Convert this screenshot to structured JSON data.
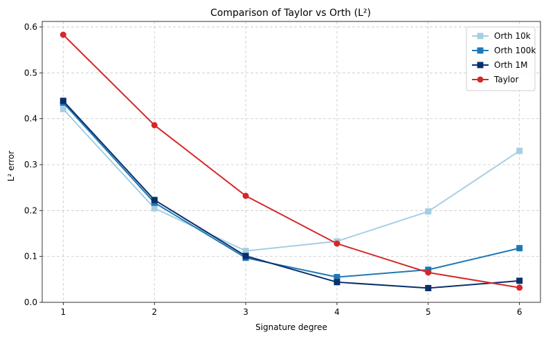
{
  "chart_data": {
    "type": "line",
    "title": "Comparison of Taylor vs Orth (L²)",
    "xlabel": "Signature degree",
    "ylabel": "L² error",
    "x": [
      1,
      2,
      3,
      4,
      5,
      6
    ],
    "xticks": [
      "1",
      "2",
      "3",
      "4",
      "5",
      "6"
    ],
    "yticks": [
      "0.0",
      "0.1",
      "0.2",
      "0.3",
      "0.4",
      "0.5",
      "0.6"
    ],
    "xlim": [
      0.77,
      6.23
    ],
    "ylim": [
      0,
      0.612
    ],
    "grid": true,
    "legend_position": "top-right",
    "series": [
      {
        "name": "Orth 10k",
        "color": "#a6cee3",
        "marker": "square",
        "values": [
          0.421,
          0.205,
          0.112,
          0.133,
          0.198,
          0.33
        ]
      },
      {
        "name": "Orth 100k",
        "color": "#1f78b4",
        "marker": "square",
        "values": [
          0.435,
          0.217,
          0.097,
          0.055,
          0.071,
          0.118
        ]
      },
      {
        "name": "Orth 1M",
        "color": "#08306b",
        "marker": "square",
        "values": [
          0.439,
          0.223,
          0.101,
          0.044,
          0.031,
          0.047
        ]
      },
      {
        "name": "Taylor",
        "color": "#d62728",
        "marker": "circle",
        "values": [
          0.583,
          0.386,
          0.232,
          0.128,
          0.065,
          0.032
        ]
      }
    ]
  }
}
